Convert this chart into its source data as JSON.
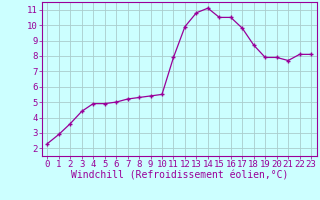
{
  "x": [
    0,
    1,
    2,
    3,
    4,
    5,
    6,
    7,
    8,
    9,
    10,
    11,
    12,
    13,
    14,
    15,
    16,
    17,
    18,
    19,
    20,
    21,
    22,
    23
  ],
  "y": [
    2.3,
    2.9,
    3.6,
    4.4,
    4.9,
    4.9,
    5.0,
    5.2,
    5.3,
    5.4,
    5.5,
    7.9,
    9.9,
    10.8,
    11.1,
    10.5,
    10.5,
    9.8,
    8.7,
    7.9,
    7.9,
    7.7,
    8.1,
    8.1
  ],
  "line_color": "#990099",
  "marker": "+",
  "marker_size": 3,
  "marker_linewidth": 1.0,
  "bg_color": "#ccffff",
  "grid_color": "#aacccc",
  "xlabel": "Windchill (Refroidissement éolien,°C)",
  "xlabel_color": "#990099",
  "xlim": [
    -0.5,
    23.5
  ],
  "ylim": [
    1.5,
    11.5
  ],
  "yticks": [
    2,
    3,
    4,
    5,
    6,
    7,
    8,
    9,
    10,
    11
  ],
  "xticks": [
    0,
    1,
    2,
    3,
    4,
    5,
    6,
    7,
    8,
    9,
    10,
    11,
    12,
    13,
    14,
    15,
    16,
    17,
    18,
    19,
    20,
    21,
    22,
    23
  ],
  "tick_color": "#990099",
  "axis_color": "#990099",
  "tick_fontsize": 6.5,
  "xlabel_fontsize": 7.0,
  "line_width": 0.9
}
